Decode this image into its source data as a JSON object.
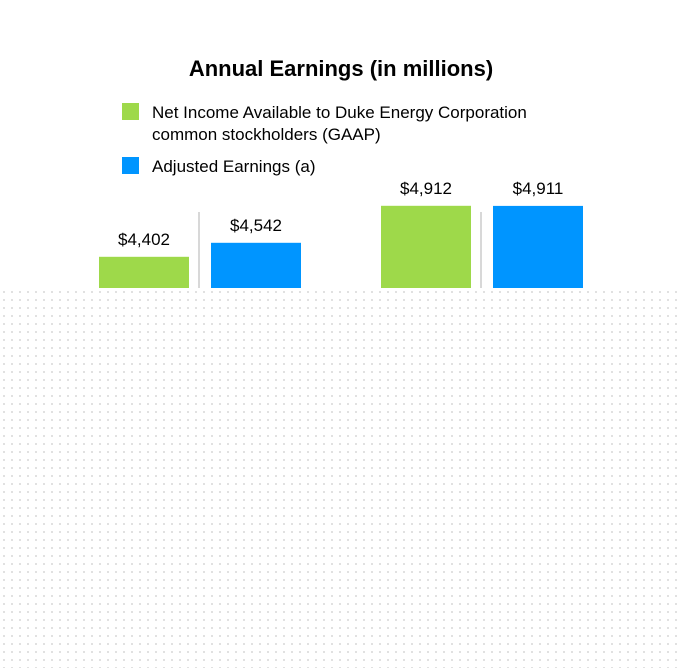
{
  "chart_data": {
    "type": "bar",
    "title": "Annual Earnings (in millions)",
    "categories": [
      "",
      ""
    ],
    "series": [
      {
        "name": "Net Income Available to Duke Energy Corporation common stockholders (GAAP)",
        "values": [
          4402,
          4912
        ],
        "labels": [
          "$4,402",
          "$4,912"
        ],
        "color": "#9ed94a"
      },
      {
        "name": "Adjusted Earnings (a)",
        "values": [
          4542,
          4911
        ],
        "labels": [
          "$4,542",
          "$4,911"
        ],
        "color": "#0095ff"
      }
    ],
    "ylim": [
      4200,
      4960
    ],
    "grid": false,
    "legend_position": "top"
  },
  "legend": {
    "line1": "Net Income Available to Duke Energy Corporation",
    "line2": "common stockholders (GAAP)",
    "adjusted": "Adjusted Earnings (a)"
  },
  "colors": {
    "gaap": "#9ed94a",
    "adjusted": "#0095ff",
    "separator": "#d8d8d8"
  }
}
